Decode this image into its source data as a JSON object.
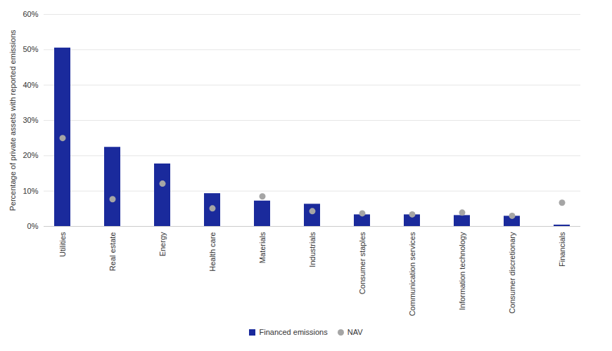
{
  "chart_data": {
    "type": "bar",
    "y_label": "Percentage of private assets with reported emissions",
    "categories": [
      "Utilities",
      "Real estate",
      "Energy",
      "Health care",
      "Materials",
      "Industrials",
      "Consumer staples",
      "Communication services",
      "Information technology",
      "Consumer discretionary",
      "Financials"
    ],
    "series": [
      {
        "name": "Financed emissions",
        "type": "bar",
        "color": "#1a2a9c",
        "values": [
          50.5,
          22.4,
          17.7,
          9.3,
          7.2,
          6.3,
          3.3,
          3.3,
          3.1,
          2.9,
          0.4
        ]
      },
      {
        "name": "NAV",
        "type": "scatter",
        "marker": "circle",
        "color": "#a5a5a5",
        "values": [
          25.0,
          7.7,
          12.1,
          5.1,
          8.5,
          4.3,
          3.7,
          3.4,
          3.9,
          3.0,
          6.7
        ]
      }
    ],
    "ylim": [
      0,
      60
    ],
    "yticks": [
      {
        "value": 0,
        "label": "0%"
      },
      {
        "value": 10,
        "label": "10%"
      },
      {
        "value": 20,
        "label": "20%"
      },
      {
        "value": 30,
        "label": "30%"
      },
      {
        "value": 40,
        "label": "40%"
      },
      {
        "value": 50,
        "label": "50%"
      },
      {
        "value": 60,
        "label": "60%"
      }
    ],
    "grid": true,
    "legend": "bottom"
  }
}
